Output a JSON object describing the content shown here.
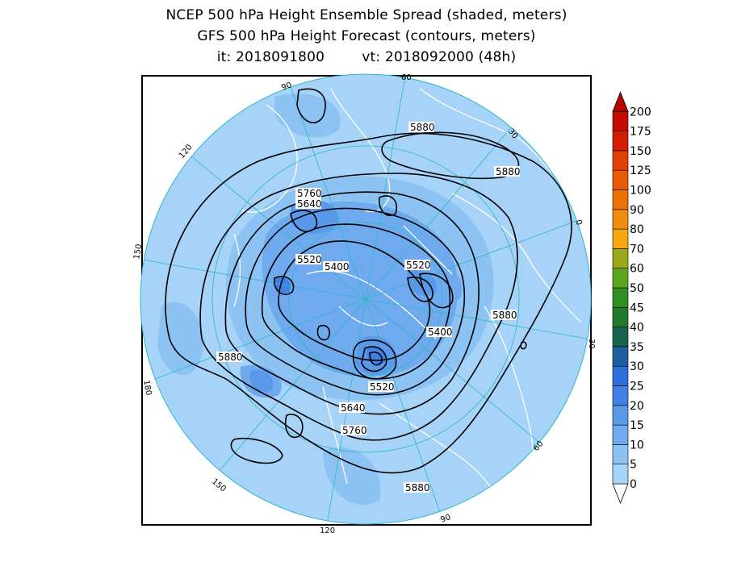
{
  "header": {
    "title_line1": "NCEP 500 hPa Height Ensemble Spread (shaded, meters)",
    "title_line2": "GFS 500 hPa Height Forecast (contours, meters)",
    "init_time": "it: 2018091800",
    "valid_time": "vt: 2018092000 (48h)"
  },
  "map": {
    "projection": "north-polar-stereographic",
    "longitude_labels": [
      "60",
      "30",
      "0",
      "30",
      "60",
      "90",
      "120",
      "150",
      "180",
      "150",
      "120",
      "90"
    ],
    "contour_labels": [
      "5880",
      "5880",
      "5760",
      "5640",
      "5520",
      "5400",
      "5520",
      "5880",
      "5400",
      "5880",
      "5520",
      "5640",
      "5760",
      "5880"
    ]
  },
  "colorbar": {
    "levels": [
      "0",
      "5",
      "10",
      "15",
      "20",
      "25",
      "30",
      "35",
      "40",
      "45",
      "50",
      "60",
      "70",
      "80",
      "90",
      "100",
      "125",
      "150",
      "175",
      "200"
    ],
    "colors": [
      "#a6d3f7",
      "#8cc3f3",
      "#6faaee",
      "#5a98ea",
      "#4281e4",
      "#2f6fdd",
      "#1f5fa0",
      "#18634d",
      "#1d7a2f",
      "#2f8f22",
      "#5ea51e",
      "#9aa81a",
      "#f5a70f",
      "#f08c0b",
      "#ec7208",
      "#e85a05",
      "#e23f04",
      "#d41d02",
      "#c60c02",
      "#b30000"
    ]
  }
}
